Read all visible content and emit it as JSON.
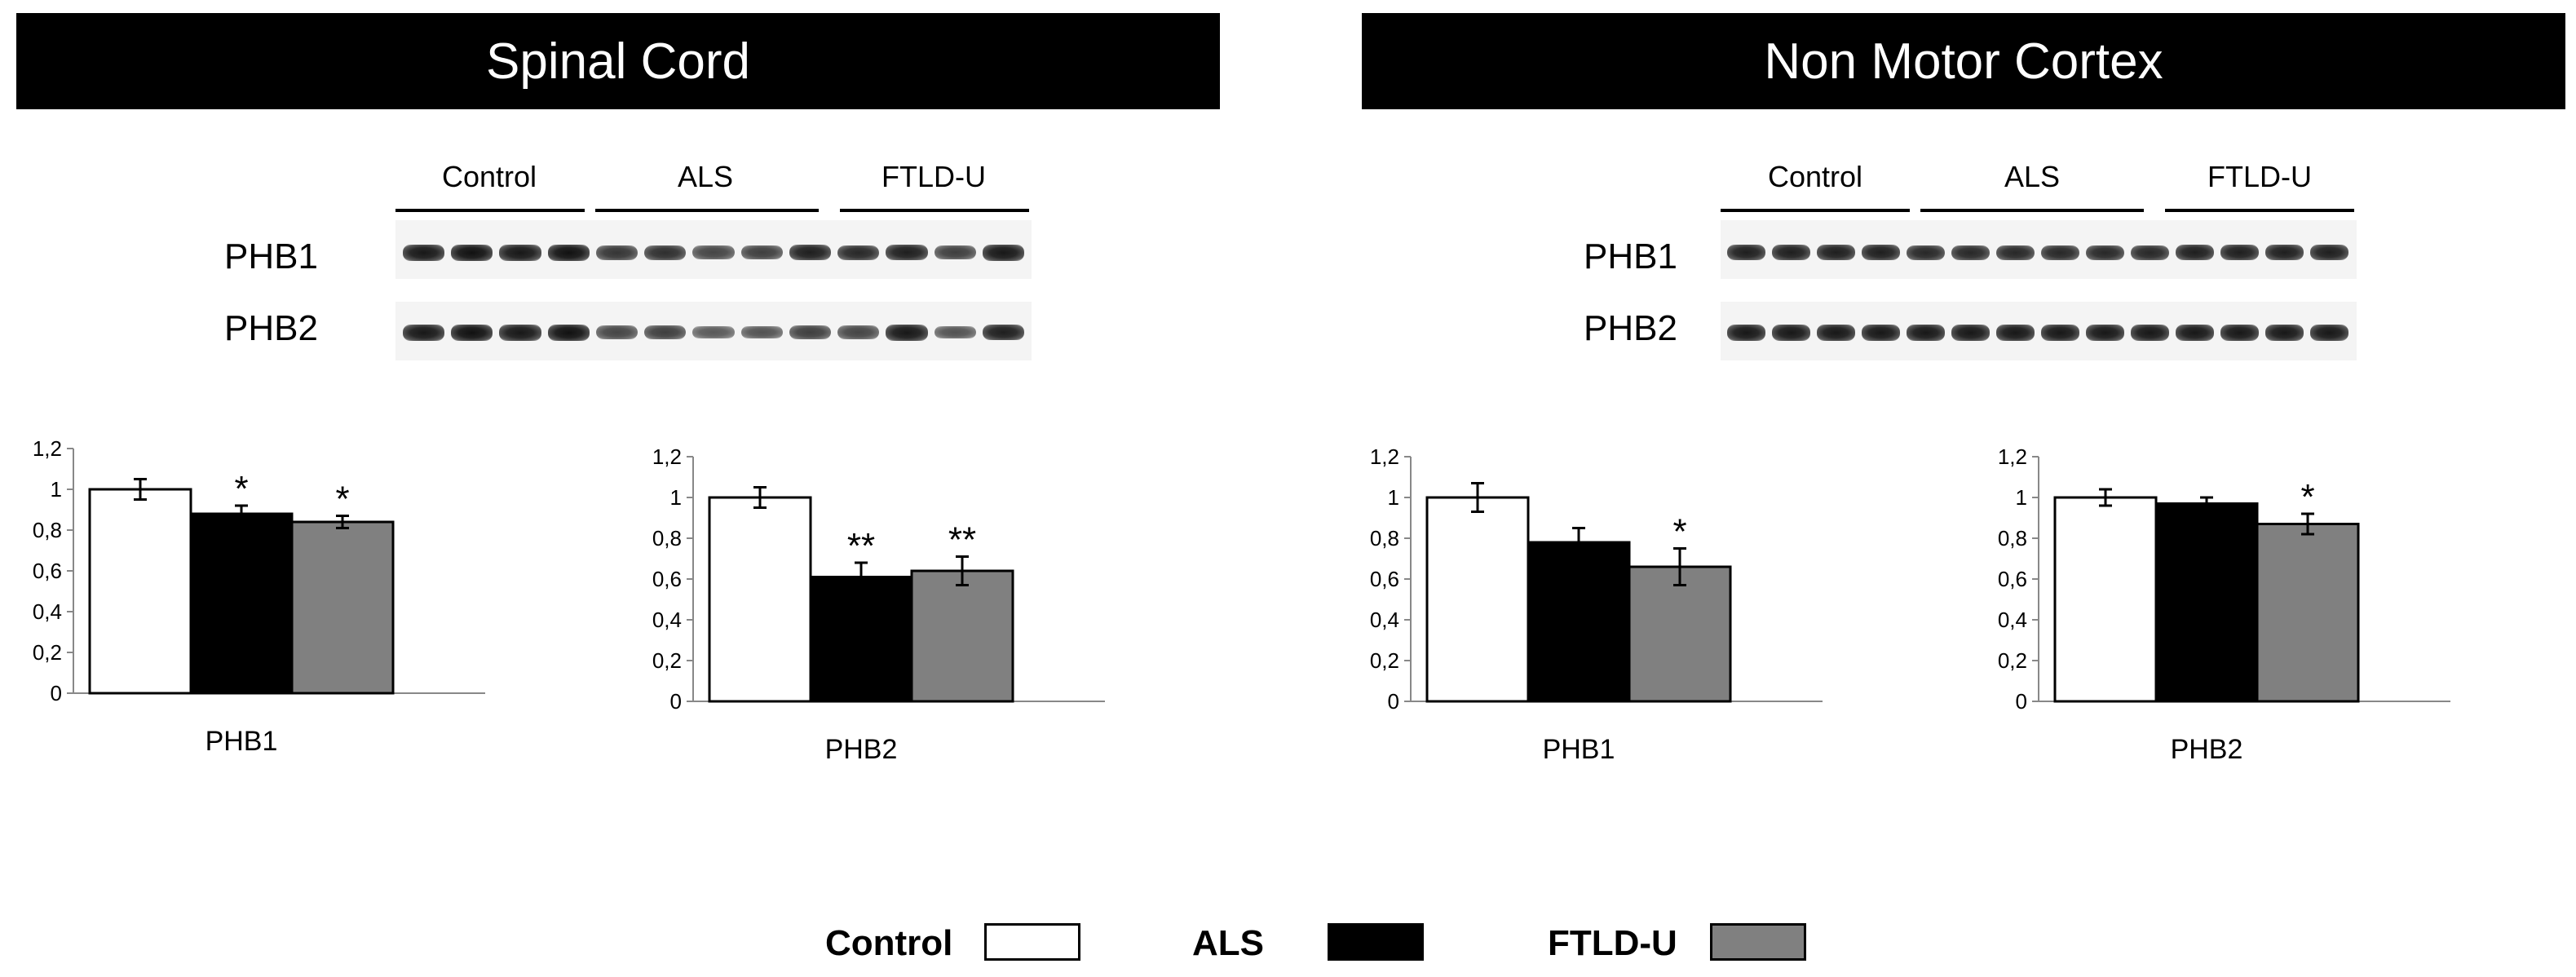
{
  "panels": [
    {
      "title": "Spinal Cord",
      "blot": {
        "groups": [
          "Control",
          "ALS",
          "FTLD-U"
        ],
        "rows": [
          "PHB1",
          "PHB2"
        ],
        "band_intensity": {
          "PHB1": [
            0.95,
            1.0,
            0.95,
            1.0,
            0.75,
            0.8,
            0.65,
            0.7,
            0.9,
            0.85,
            0.9,
            0.7,
            0.95
          ],
          "PHB2": [
            0.95,
            1.0,
            0.95,
            1.0,
            0.65,
            0.7,
            0.5,
            0.55,
            0.7,
            0.65,
            0.95,
            0.55,
            0.9
          ]
        }
      }
    },
    {
      "title": "Non Motor Cortex",
      "blot": {
        "groups": [
          "Control",
          "ALS",
          "FTLD-U"
        ],
        "rows": [
          "PHB1",
          "PHB2"
        ],
        "band_intensity": {
          "PHB1": [
            0.9,
            0.9,
            0.9,
            0.9,
            0.85,
            0.85,
            0.85,
            0.85,
            0.85,
            0.85,
            0.9,
            0.9,
            0.9,
            0.9
          ],
          "PHB2": [
            0.95,
            0.95,
            0.95,
            0.95,
            0.95,
            0.95,
            0.95,
            0.95,
            0.95,
            0.95,
            0.95,
            0.95,
            0.95,
            0.95
          ]
        }
      }
    }
  ],
  "chart_data": [
    {
      "type": "bar",
      "panel": "Spinal Cord",
      "xlabel": "PHB1",
      "ylim": [
        0,
        1.2
      ],
      "yticks": [
        "0",
        "0,2",
        "0,4",
        "0,6",
        "0,8",
        "1",
        "1,2"
      ],
      "series": [
        {
          "name": "Control",
          "value": 1.0,
          "error": 0.05,
          "sig": ""
        },
        {
          "name": "ALS",
          "value": 0.88,
          "error": 0.04,
          "sig": "*"
        },
        {
          "name": "FTLD-U",
          "value": 0.84,
          "error": 0.03,
          "sig": "*"
        }
      ]
    },
    {
      "type": "bar",
      "panel": "Spinal Cord",
      "xlabel": "PHB2",
      "ylim": [
        0,
        1.2
      ],
      "yticks": [
        "0",
        "0,2",
        "0,4",
        "0,6",
        "0,8",
        "1",
        "1,2"
      ],
      "series": [
        {
          "name": "Control",
          "value": 1.0,
          "error": 0.05,
          "sig": ""
        },
        {
          "name": "ALS",
          "value": 0.61,
          "error": 0.07,
          "sig": "**"
        },
        {
          "name": "FTLD-U",
          "value": 0.64,
          "error": 0.07,
          "sig": "**"
        }
      ]
    },
    {
      "type": "bar",
      "panel": "Non Motor Cortex",
      "xlabel": "PHB1",
      "ylim": [
        0,
        1.2
      ],
      "yticks": [
        "0",
        "0,2",
        "0,4",
        "0,6",
        "0,8",
        "1",
        "1,2"
      ],
      "series": [
        {
          "name": "Control",
          "value": 1.0,
          "error": 0.07,
          "sig": ""
        },
        {
          "name": "ALS",
          "value": 0.78,
          "error": 0.07,
          "sig": ""
        },
        {
          "name": "FTLD-U",
          "value": 0.66,
          "error": 0.09,
          "sig": "*"
        }
      ]
    },
    {
      "type": "bar",
      "panel": "Non Motor Cortex",
      "xlabel": "PHB2",
      "ylim": [
        0,
        1.2
      ],
      "yticks": [
        "0",
        "0,2",
        "0,4",
        "0,6",
        "0,8",
        "1",
        "1,2"
      ],
      "series": [
        {
          "name": "Control",
          "value": 1.0,
          "error": 0.04,
          "sig": ""
        },
        {
          "name": "ALS",
          "value": 0.97,
          "error": 0.03,
          "sig": ""
        },
        {
          "name": "FTLD-U",
          "value": 0.87,
          "error": 0.05,
          "sig": "*"
        }
      ]
    }
  ],
  "legend": [
    {
      "label": "Control",
      "color": "#ffffff"
    },
    {
      "label": "ALS",
      "color": "#000000"
    },
    {
      "label": "FTLD-U",
      "color": "#808080"
    }
  ],
  "colors": {
    "Control": "#ffffff",
    "ALS": "#000000",
    "FTLD-U": "#808080"
  }
}
